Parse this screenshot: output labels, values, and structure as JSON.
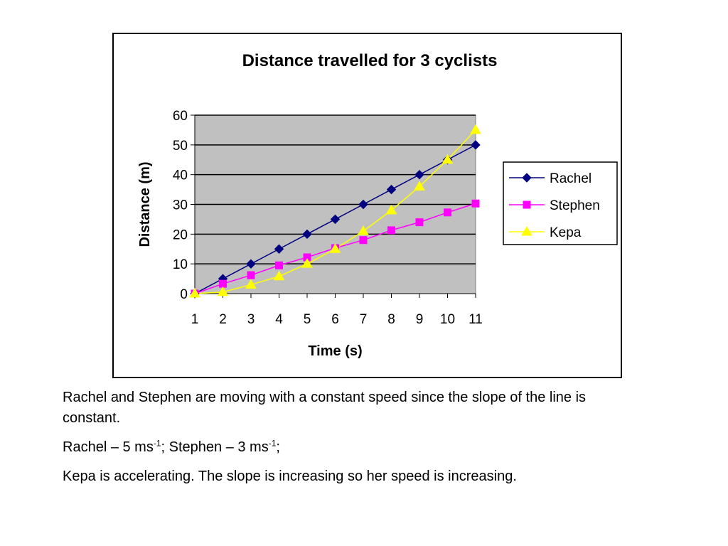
{
  "chart_data": {
    "type": "line",
    "title": "Distance travelled for 3 cyclists",
    "xlabel": "Time (s)",
    "ylabel": "Distance (m)",
    "categories": [
      "1",
      "2",
      "3",
      "4",
      "5",
      "6",
      "7",
      "8",
      "9",
      "10",
      "11"
    ],
    "ylim": [
      0,
      60
    ],
    "yticks": [
      "0",
      "10",
      "20",
      "30",
      "40",
      "50",
      "60"
    ],
    "grid": true,
    "legend_position": "right",
    "plot_background": "#c0c0c0",
    "series": [
      {
        "name": "Rachel",
        "color": "#000080",
        "marker": "diamond",
        "values": [
          0,
          5,
          10,
          15,
          20,
          25,
          30,
          35,
          40,
          45,
          50
        ]
      },
      {
        "name": "Stephen",
        "color": "#ff00ff",
        "marker": "square",
        "values": [
          0,
          3.3,
          6.2,
          9.5,
          12.2,
          15.3,
          18,
          21.3,
          24,
          27.3,
          30.3
        ]
      },
      {
        "name": "Kepa",
        "color": "#ffff00",
        "marker": "triangle",
        "values": [
          0,
          0.5,
          3,
          5.8,
          10,
          15,
          21,
          28,
          36,
          45,
          55
        ]
      }
    ]
  },
  "notes": {
    "line1": "Rachel and Stephen are moving with a constant speed since the slope of the line is constant.",
    "line2_a": "Rachel – 5 ms",
    "line2_sup1": "-1",
    "line2_b": "; Stephen – 3 ms",
    "line2_sup2": "-1",
    "line2_c": ";",
    "line3": "Kepa is accelerating. The slope is increasing so her speed is increasing."
  }
}
